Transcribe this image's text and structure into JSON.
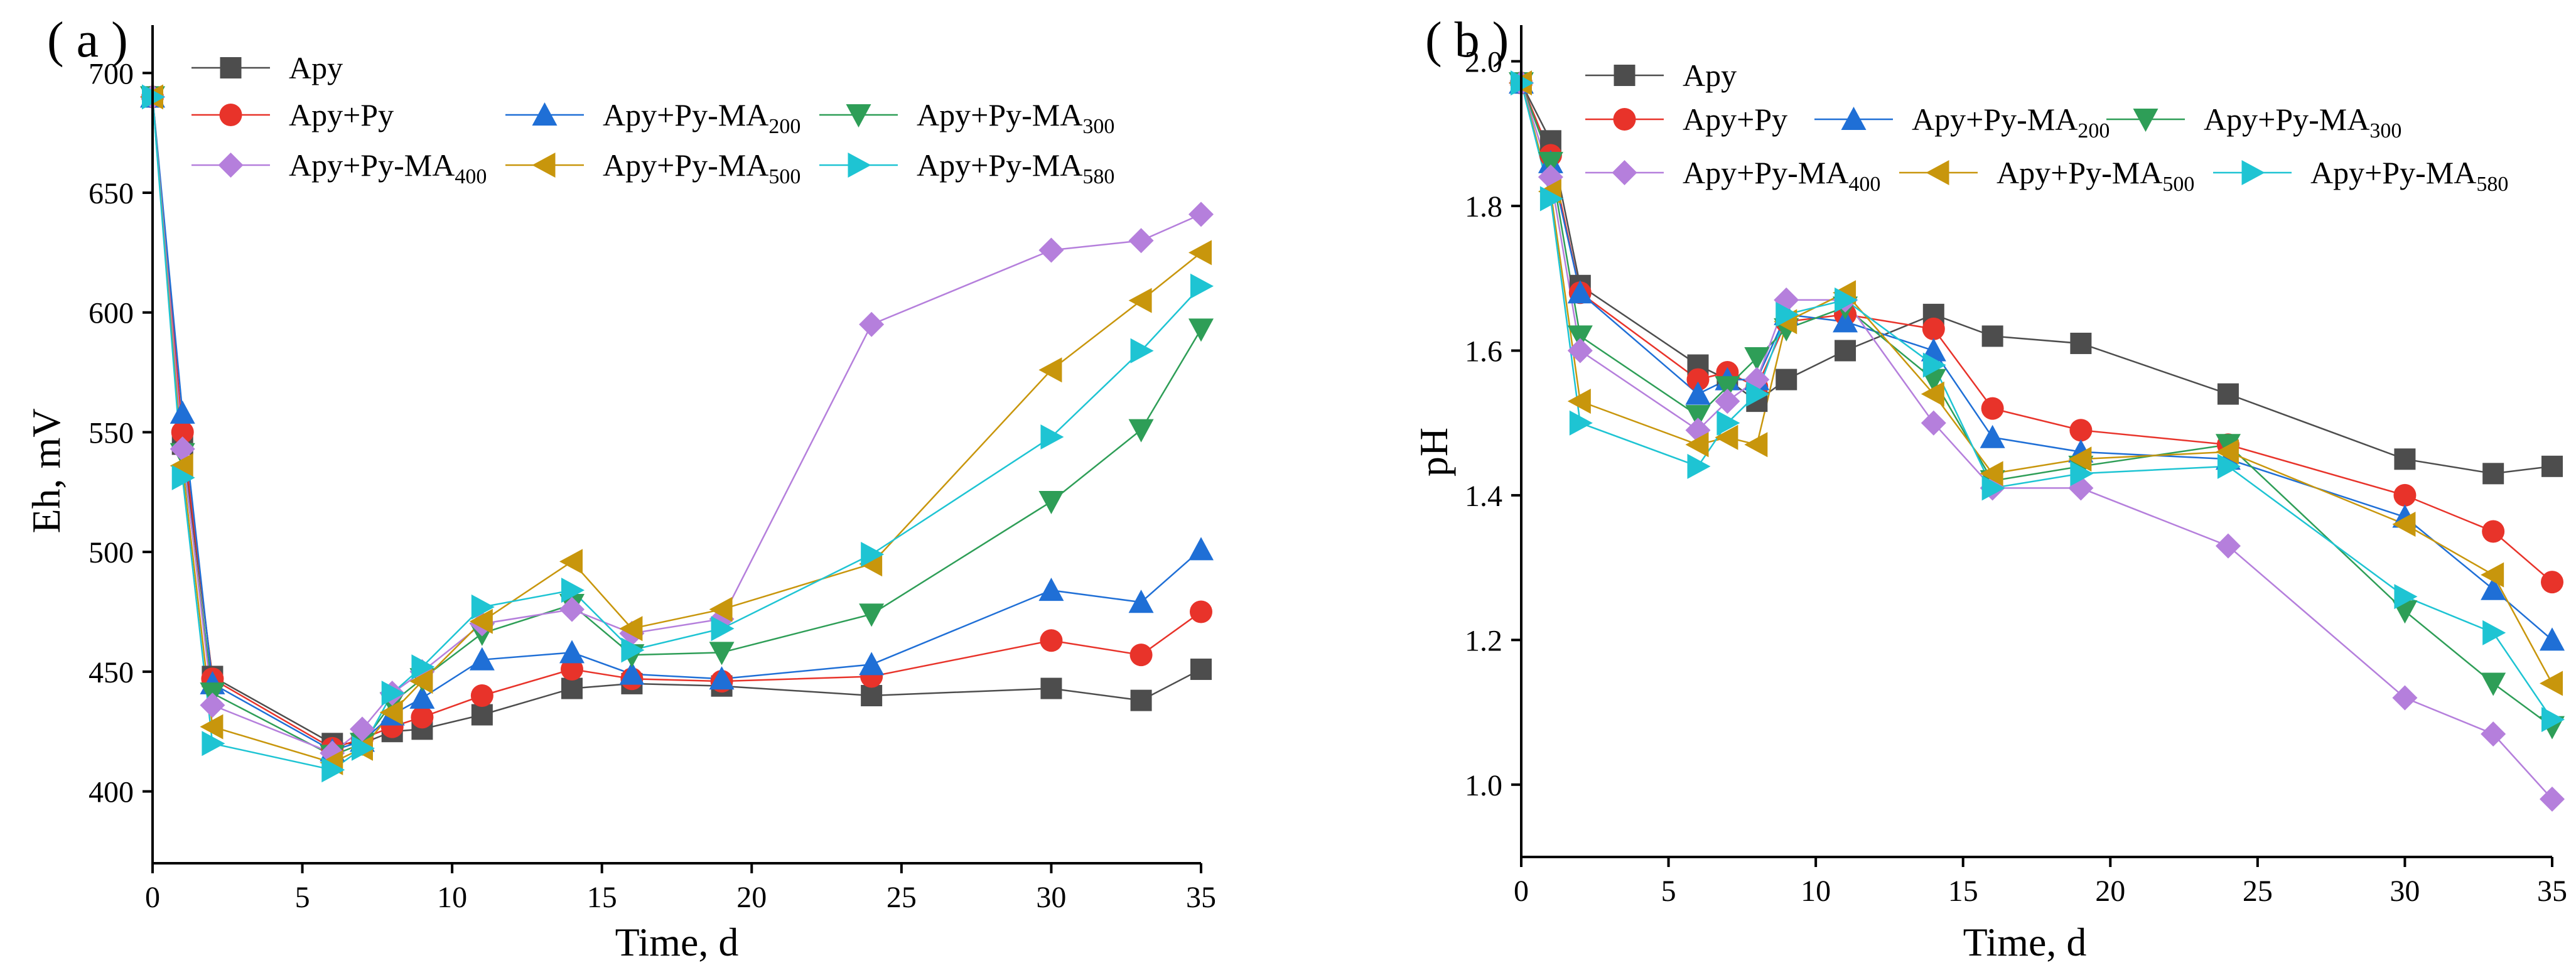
{
  "chart_data": [
    {
      "id": "a",
      "type": "line",
      "panel_label": "( a )",
      "xlabel": "Time, d",
      "ylabel": "Eh, mV",
      "xlim": [
        0,
        35
      ],
      "ylim": [
        370,
        720
      ],
      "xticks": [
        0,
        5,
        10,
        15,
        20,
        25,
        30,
        35
      ],
      "yticks": [
        400,
        450,
        500,
        550,
        600,
        650,
        700
      ],
      "legend_placement": "top-left",
      "x": [
        0,
        1,
        2,
        6,
        7,
        8,
        9,
        11,
        14,
        16,
        19,
        24,
        30,
        33,
        35
      ],
      "series": [
        {
          "name": "Apy",
          "base": "Apy",
          "sub": "",
          "color": "#4d4d4d",
          "marker": "square",
          "values": [
            690,
            545,
            448,
            420,
            420,
            425,
            426,
            432,
            443,
            445,
            444,
            440,
            443,
            438,
            451
          ]
        },
        {
          "name": "Apy+Py",
          "base": "Apy+Py",
          "sub": "",
          "color": "#e8332a",
          "marker": "circle",
          "values": [
            690,
            550,
            447,
            418,
            422,
            427,
            431,
            440,
            451,
            447,
            446,
            448,
            463,
            457,
            475
          ]
        },
        {
          "name": "Apy+Py-MA200",
          "base": "Apy+Py-MA",
          "sub": "200",
          "color": "#1f6fd6",
          "marker": "triangle-up",
          "values": [
            690,
            558,
            445,
            417,
            421,
            432,
            439,
            455,
            458,
            449,
            447,
            453,
            484,
            479,
            501
          ]
        },
        {
          "name": "Apy+Py-MA300",
          "base": "Apy+Py-MA",
          "sub": "300",
          "color": "#2e9e57",
          "marker": "triangle-down",
          "values": [
            690,
            541,
            441,
            415,
            420,
            437,
            447,
            466,
            478,
            457,
            458,
            474,
            521,
            551,
            593
          ]
        },
        {
          "name": "Apy+Py-MA400",
          "base": "Apy+Py-MA",
          "sub": "400",
          "color": "#b57fdc",
          "marker": "diamond",
          "values": [
            690,
            543,
            436,
            416,
            426,
            441,
            450,
            470,
            476,
            466,
            472,
            595,
            626,
            630,
            641
          ]
        },
        {
          "name": "Apy+Py-MA500",
          "base": "Apy+Py-MA",
          "sub": "500",
          "color": "#c8960c",
          "marker": "triangle-left",
          "values": [
            690,
            536,
            427,
            412,
            418,
            433,
            446,
            471,
            496,
            468,
            476,
            495,
            576,
            605,
            625
          ]
        },
        {
          "name": "Apy+Py-MA580",
          "base": "Apy+Py-MA",
          "sub": "580",
          "color": "#1ec4d3",
          "marker": "triangle-right",
          "values": [
            690,
            531,
            420,
            409,
            418,
            441,
            452,
            477,
            484,
            459,
            468,
            499,
            548,
            584,
            611
          ]
        }
      ]
    },
    {
      "id": "b",
      "type": "line",
      "panel_label": "( b )",
      "xlabel": "Time, d",
      "ylabel": "pH",
      "xlim": [
        0,
        35
      ],
      "ylim": [
        0.9,
        2.05
      ],
      "xticks": [
        0,
        5,
        10,
        15,
        20,
        25,
        30,
        35
      ],
      "yticks": [
        1.0,
        1.2,
        1.4,
        1.6,
        1.8,
        2.0
      ],
      "legend_placement": "top-left",
      "x": [
        0,
        1,
        2,
        6,
        7,
        8,
        9,
        11,
        14,
        16,
        19,
        24,
        30,
        33,
        35
      ],
      "series": [
        {
          "name": "Apy",
          "base": "Apy",
          "sub": "",
          "color": "#4d4d4d",
          "marker": "square",
          "values": [
            1.97,
            1.89,
            1.69,
            1.58,
            1.56,
            1.53,
            1.56,
            1.6,
            1.65,
            1.62,
            1.61,
            1.54,
            1.45,
            1.43,
            1.44
          ]
        },
        {
          "name": "Apy+Py",
          "base": "Apy+Py",
          "sub": "",
          "color": "#e8332a",
          "marker": "circle",
          "values": [
            1.97,
            1.87,
            1.68,
            1.56,
            1.57,
            1.55,
            1.64,
            1.65,
            1.63,
            1.52,
            1.49,
            1.47,
            1.4,
            1.35,
            1.28
          ]
        },
        {
          "name": "Apy+Py-MA200",
          "base": "Apy+Py-MA",
          "sub": "200",
          "color": "#1f6fd6",
          "marker": "triangle-up",
          "values": [
            1.97,
            1.86,
            1.68,
            1.54,
            1.56,
            1.56,
            1.65,
            1.64,
            1.6,
            1.48,
            1.46,
            1.45,
            1.37,
            1.27,
            1.2
          ]
        },
        {
          "name": "Apy+Py-MA300",
          "base": "Apy+Py-MA",
          "sub": "300",
          "color": "#2e9e57",
          "marker": "triangle-down",
          "values": [
            1.97,
            1.86,
            1.62,
            1.51,
            1.55,
            1.59,
            1.63,
            1.66,
            1.56,
            1.42,
            1.44,
            1.47,
            1.24,
            1.14,
            1.08
          ]
        },
        {
          "name": "Apy+Py-MA400",
          "base": "Apy+Py-MA",
          "sub": "400",
          "color": "#b57fdc",
          "marker": "diamond",
          "values": [
            1.97,
            1.84,
            1.6,
            1.49,
            1.53,
            1.56,
            1.67,
            1.67,
            1.5,
            1.41,
            1.41,
            1.33,
            1.12,
            1.07,
            0.98
          ]
        },
        {
          "name": "Apy+Py-MA500",
          "base": "Apy+Py-MA",
          "sub": "500",
          "color": "#c8960c",
          "marker": "triangle-left",
          "values": [
            1.97,
            1.82,
            1.53,
            1.47,
            1.48,
            1.47,
            1.64,
            1.68,
            1.54,
            1.43,
            1.45,
            1.46,
            1.36,
            1.29,
            1.14
          ]
        },
        {
          "name": "Apy+Py-MA580",
          "base": "Apy+Py-MA",
          "sub": "580",
          "color": "#1ec4d3",
          "marker": "triangle-right",
          "values": [
            1.97,
            1.81,
            1.5,
            1.44,
            1.5,
            1.54,
            1.65,
            1.67,
            1.58,
            1.41,
            1.43,
            1.44,
            1.26,
            1.21,
            1.09
          ]
        }
      ]
    }
  ]
}
